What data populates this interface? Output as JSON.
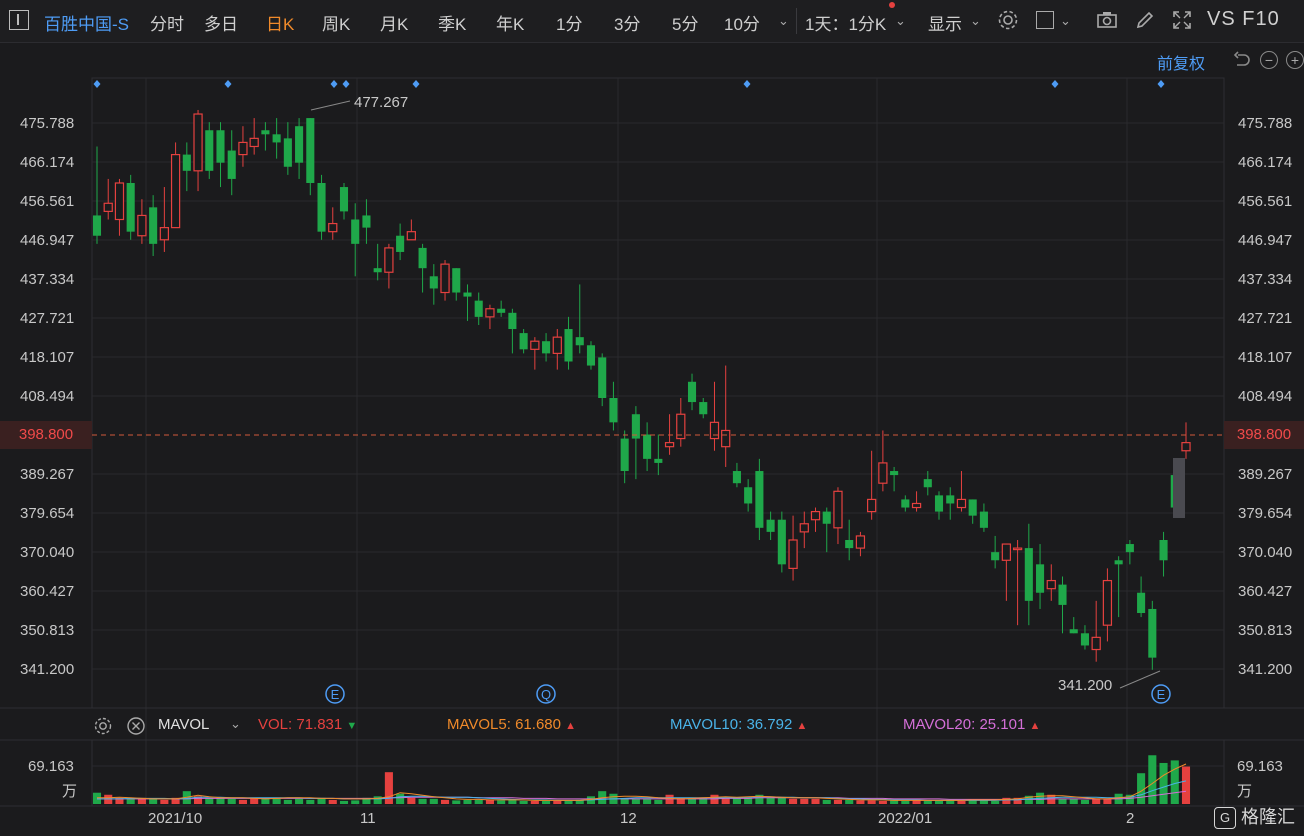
{
  "toolbar": {
    "symbol": "百胜中国-S",
    "tabs": [
      "分时",
      "多日",
      "日K",
      "周K",
      "月K",
      "季K",
      "年K",
      "1分",
      "3分",
      "5分",
      "10分"
    ],
    "active_tab": "日K",
    "interval_select": "1天：1分K",
    "display_label": "显示",
    "vs_label": "VS F10"
  },
  "adjust_label": "前复权",
  "price_axis": {
    "ticks": [
      "475.788",
      "466.174",
      "456.561",
      "446.947",
      "437.334",
      "427.721",
      "418.107",
      "408.494",
      "398.800",
      "389.267",
      "379.654",
      "370.040",
      "360.427",
      "350.813",
      "341.200"
    ],
    "current_price": "398.800",
    "high_annotation": "477.267",
    "low_annotation": "341.200"
  },
  "date_axis": [
    "2021/10",
    "11",
    "12",
    "2022/01",
    "2"
  ],
  "event_markers": [
    "E",
    "Q",
    "E"
  ],
  "indicator": {
    "name": "MAVOL",
    "vol_label": "VOL:",
    "vol_value": "71.831",
    "mavol5_label": "MAVOL5:",
    "mavol5_value": "61.680",
    "mavol10_label": "MAVOL10:",
    "mavol10_value": "36.792",
    "mavol20_label": "MAVOL20:",
    "mavol20_value": "25.101"
  },
  "volume_axis": {
    "max_label": "69.163",
    "unit": "万"
  },
  "watermark": "格隆汇",
  "colors": {
    "up": "#e5413f",
    "down": "#1fa84a",
    "accent": "#4e9cf5",
    "active_tab": "#f08a2a",
    "mavol5": "#f08a2a",
    "mavol10": "#4ab3e8",
    "mavol20": "#d46fd8"
  },
  "chart_data": {
    "type": "candlestick",
    "ylim": [
      336,
      480
    ],
    "candles": [
      [
        453,
        448,
        470,
        446
      ],
      [
        454,
        456,
        462,
        452
      ],
      [
        452,
        461,
        462,
        448
      ],
      [
        461,
        449,
        463,
        447
      ],
      [
        448,
        453,
        457,
        446
      ],
      [
        455,
        446,
        458,
        443
      ],
      [
        447,
        450,
        460,
        444
      ],
      [
        450,
        468,
        471,
        450
      ],
      [
        468,
        464,
        471,
        459
      ],
      [
        464,
        478,
        479,
        459
      ],
      [
        474,
        464,
        476,
        462
      ],
      [
        474,
        466,
        476,
        460
      ],
      [
        469,
        462,
        474,
        458
      ],
      [
        468,
        471,
        475,
        465
      ],
      [
        470,
        472,
        477,
        468
      ],
      [
        474,
        473,
        476,
        469
      ],
      [
        473,
        471,
        477,
        467
      ],
      [
        472,
        465,
        476,
        463
      ],
      [
        475,
        466,
        477,
        462
      ],
      [
        477,
        461,
        477,
        458
      ],
      [
        461,
        449,
        463,
        447
      ],
      [
        449,
        451,
        455,
        447
      ],
      [
        460,
        454,
        461,
        452
      ],
      [
        452,
        446,
        456,
        438
      ],
      [
        453,
        450,
        457,
        446
      ],
      [
        440,
        439,
        446,
        437
      ],
      [
        439,
        445,
        446,
        435
      ],
      [
        448,
        444,
        451,
        442
      ],
      [
        447,
        449,
        452,
        447
      ],
      [
        445,
        440,
        446,
        434
      ],
      [
        438,
        435,
        441,
        431
      ],
      [
        434,
        441,
        442,
        432
      ],
      [
        440,
        434,
        440,
        432
      ],
      [
        434,
        433,
        436,
        427
      ],
      [
        432,
        428,
        434,
        426
      ],
      [
        428,
        430,
        431,
        425
      ],
      [
        430,
        429,
        432,
        428
      ],
      [
        429,
        425,
        430,
        419
      ],
      [
        424,
        420,
        425,
        419
      ],
      [
        420,
        422,
        423,
        415
      ],
      [
        422,
        419,
        424,
        417
      ],
      [
        419,
        423,
        425,
        415
      ],
      [
        425,
        417,
        428,
        415
      ],
      [
        423,
        421,
        436,
        419
      ],
      [
        421,
        416,
        422,
        415
      ],
      [
        418,
        408,
        419,
        406
      ],
      [
        408,
        402,
        412,
        400
      ],
      [
        398,
        390,
        400,
        387
      ],
      [
        404,
        398,
        406,
        388
      ],
      [
        399,
        393,
        402,
        390
      ],
      [
        393,
        392,
        399,
        389
      ],
      [
        396,
        397,
        404,
        394
      ],
      [
        398,
        404,
        408,
        396
      ],
      [
        412,
        407,
        414,
        405
      ],
      [
        407,
        404,
        408,
        403
      ],
      [
        398,
        402,
        412,
        395
      ],
      [
        396,
        400,
        416,
        391
      ],
      [
        390,
        387,
        392,
        386
      ],
      [
        386,
        382,
        388,
        380
      ],
      [
        390,
        376,
        393,
        373
      ],
      [
        378,
        375,
        380,
        373
      ],
      [
        378,
        367,
        380,
        365
      ],
      [
        366,
        373,
        379,
        363
      ],
      [
        375,
        377,
        380,
        371
      ],
      [
        378,
        380,
        381,
        375
      ],
      [
        380,
        377,
        381,
        370
      ],
      [
        376,
        385,
        386,
        372
      ],
      [
        373,
        371,
        378,
        368
      ],
      [
        371,
        374,
        375,
        369
      ],
      [
        380,
        383,
        395,
        378
      ],
      [
        387,
        392,
        400,
        385
      ],
      [
        390,
        389,
        391,
        385
      ],
      [
        383,
        381,
        384,
        380
      ],
      [
        381,
        382,
        385,
        380
      ],
      [
        388,
        386,
        390,
        384
      ],
      [
        384,
        380,
        385,
        378
      ],
      [
        384,
        382,
        386,
        378
      ],
      [
        381,
        383,
        390,
        380
      ],
      [
        383,
        379,
        383,
        377
      ],
      [
        380,
        376,
        382,
        375
      ],
      [
        370,
        368,
        374,
        366
      ],
      [
        368,
        372,
        372,
        358
      ],
      [
        371,
        371,
        373,
        352
      ],
      [
        371,
        358,
        377,
        352
      ],
      [
        367,
        360,
        372,
        356
      ],
      [
        361,
        363,
        367,
        358
      ],
      [
        362,
        357,
        364,
        350
      ],
      [
        351,
        350,
        354,
        350
      ],
      [
        350,
        347,
        352,
        346
      ],
      [
        346,
        349,
        358,
        343
      ],
      [
        352,
        363,
        366,
        348
      ],
      [
        368,
        367,
        369,
        354
      ],
      [
        372,
        370,
        373,
        367
      ],
      [
        360,
        355,
        364,
        354
      ],
      [
        356,
        344,
        358,
        341
      ],
      [
        373,
        368,
        375,
        364
      ],
      [
        389,
        381,
        391,
        379
      ],
      [
        395,
        397,
        402,
        393
      ]
    ],
    "volume_ratios": [
      0.22,
      0.18,
      0.12,
      0.1,
      0.12,
      0.1,
      0.08,
      0.12,
      0.25,
      0.15,
      0.12,
      0.12,
      0.1,
      0.08,
      0.1,
      0.1,
      0.1,
      0.08,
      0.1,
      0.08,
      0.12,
      0.08,
      0.06,
      0.07,
      0.12,
      0.15,
      0.62,
      0.2,
      0.12,
      0.1,
      0.1,
      0.08,
      0.07,
      0.08,
      0.08,
      0.08,
      0.07,
      0.08,
      0.06,
      0.06,
      0.06,
      0.06,
      0.06,
      0.08,
      0.15,
      0.25,
      0.2,
      0.1,
      0.1,
      0.1,
      0.08,
      0.18,
      0.12,
      0.1,
      0.12,
      0.18,
      0.12,
      0.12,
      0.14,
      0.18,
      0.12,
      0.12,
      0.1,
      0.1,
      0.1,
      0.08,
      0.08,
      0.08,
      0.07,
      0.07,
      0.06,
      0.07,
      0.06,
      0.07,
      0.06,
      0.06,
      0.08,
      0.06,
      0.08,
      0.08,
      0.06,
      0.12,
      0.12,
      0.16,
      0.22,
      0.18,
      0.1,
      0.1,
      0.08,
      0.1,
      0.1,
      0.2,
      0.18,
      0.6,
      0.95,
      0.8,
      0.85,
      0.73
    ],
    "mavol5_ratios": [
      0.12,
      0.12,
      0.13,
      0.12,
      0.11,
      0.1,
      0.1,
      0.1,
      0.13,
      0.17,
      0.14,
      0.12,
      0.12,
      0.12,
      0.11,
      0.1,
      0.11,
      0.12,
      0.12,
      0.12,
      0.11,
      0.11,
      0.1,
      0.1,
      0.1,
      0.11,
      0.14,
      0.22,
      0.2,
      0.17,
      0.14,
      0.12,
      0.1,
      0.09,
      0.09,
      0.08,
      0.08,
      0.08,
      0.08,
      0.07,
      0.07,
      0.07,
      0.07,
      0.07,
      0.09,
      0.12,
      0.14,
      0.15,
      0.15,
      0.14,
      0.12,
      0.11,
      0.1,
      0.11,
      0.12,
      0.13,
      0.14,
      0.13,
      0.14,
      0.15,
      0.14,
      0.13,
      0.12,
      0.12,
      0.12,
      0.11,
      0.1,
      0.09,
      0.08,
      0.08,
      0.08,
      0.07,
      0.07,
      0.07,
      0.07,
      0.07,
      0.07,
      0.07,
      0.08,
      0.08,
      0.08,
      0.09,
      0.1,
      0.13,
      0.15,
      0.16,
      0.16,
      0.14,
      0.12,
      0.1,
      0.1,
      0.12,
      0.14,
      0.25,
      0.4,
      0.56,
      0.68,
      0.78
    ],
    "mavol10_ratios": [
      0.1,
      0.1,
      0.1,
      0.11,
      0.11,
      0.11,
      0.11,
      0.1,
      0.11,
      0.13,
      0.13,
      0.13,
      0.12,
      0.12,
      0.12,
      0.12,
      0.12,
      0.12,
      0.12,
      0.11,
      0.11,
      0.11,
      0.1,
      0.1,
      0.1,
      0.1,
      0.11,
      0.14,
      0.15,
      0.15,
      0.14,
      0.13,
      0.13,
      0.13,
      0.12,
      0.11,
      0.1,
      0.09,
      0.08,
      0.08,
      0.08,
      0.07,
      0.07,
      0.07,
      0.08,
      0.09,
      0.1,
      0.11,
      0.12,
      0.12,
      0.12,
      0.12,
      0.12,
      0.12,
      0.12,
      0.12,
      0.12,
      0.12,
      0.13,
      0.14,
      0.14,
      0.13,
      0.13,
      0.12,
      0.12,
      0.12,
      0.11,
      0.1,
      0.1,
      0.09,
      0.09,
      0.08,
      0.08,
      0.08,
      0.07,
      0.07,
      0.07,
      0.07,
      0.07,
      0.07,
      0.07,
      0.08,
      0.08,
      0.1,
      0.11,
      0.12,
      0.13,
      0.13,
      0.13,
      0.13,
      0.12,
      0.12,
      0.13,
      0.18,
      0.26,
      0.33,
      0.4,
      0.45
    ],
    "mavol20_ratios": [
      0.1,
      0.1,
      0.1,
      0.1,
      0.1,
      0.1,
      0.1,
      0.1,
      0.1,
      0.11,
      0.11,
      0.11,
      0.11,
      0.11,
      0.11,
      0.11,
      0.11,
      0.11,
      0.11,
      0.11,
      0.11,
      0.11,
      0.11,
      0.11,
      0.11,
      0.11,
      0.12,
      0.12,
      0.13,
      0.13,
      0.13,
      0.13,
      0.13,
      0.13,
      0.12,
      0.12,
      0.12,
      0.12,
      0.11,
      0.11,
      0.11,
      0.1,
      0.1,
      0.1,
      0.1,
      0.1,
      0.1,
      0.1,
      0.1,
      0.1,
      0.1,
      0.1,
      0.1,
      0.1,
      0.1,
      0.1,
      0.11,
      0.11,
      0.11,
      0.12,
      0.12,
      0.12,
      0.12,
      0.12,
      0.12,
      0.12,
      0.12,
      0.11,
      0.11,
      0.11,
      0.11,
      0.1,
      0.1,
      0.1,
      0.1,
      0.1,
      0.09,
      0.09,
      0.09,
      0.09,
      0.09,
      0.09,
      0.09,
      0.09,
      0.09,
      0.1,
      0.1,
      0.1,
      0.1,
      0.1,
      0.1,
      0.1,
      0.11,
      0.13,
      0.16,
      0.19,
      0.22,
      0.25
    ]
  }
}
